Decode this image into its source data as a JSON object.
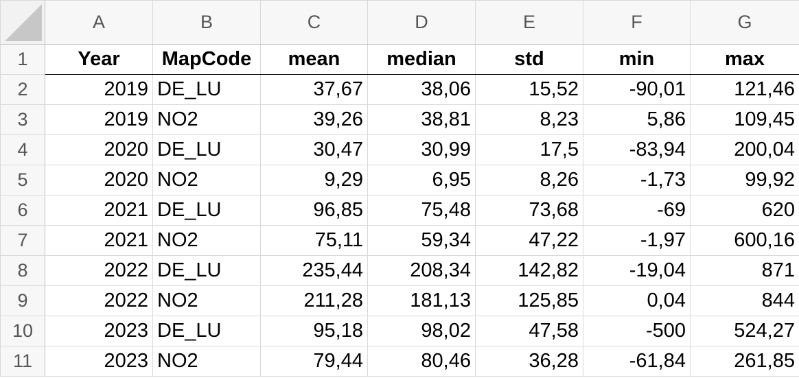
{
  "columns": [
    "A",
    "B",
    "C",
    "D",
    "E",
    "F",
    "G"
  ],
  "header": {
    "row_number": "1",
    "cells": [
      "Year",
      "MapCode",
      "mean",
      "median",
      "std",
      "min",
      "max"
    ]
  },
  "rows": [
    {
      "n": "2",
      "cells": [
        "2019",
        "DE_LU",
        "37,67",
        "38,06",
        "15,52",
        "-90,01",
        "121,46"
      ]
    },
    {
      "n": "3",
      "cells": [
        "2019",
        "NO2",
        "39,26",
        "38,81",
        "8,23",
        "5,86",
        "109,45"
      ]
    },
    {
      "n": "4",
      "cells": [
        "2020",
        "DE_LU",
        "30,47",
        "30,99",
        "17,5",
        "-83,94",
        "200,04"
      ]
    },
    {
      "n": "5",
      "cells": [
        "2020",
        "NO2",
        "9,29",
        "6,95",
        "8,26",
        "-1,73",
        "99,92"
      ]
    },
    {
      "n": "6",
      "cells": [
        "2021",
        "DE_LU",
        "96,85",
        "75,48",
        "73,68",
        "-69",
        "620"
      ]
    },
    {
      "n": "7",
      "cells": [
        "2021",
        "NO2",
        "75,11",
        "59,34",
        "47,22",
        "-1,97",
        "600,16"
      ]
    },
    {
      "n": "8",
      "cells": [
        "2022",
        "DE_LU",
        "235,44",
        "208,34",
        "142,82",
        "-19,04",
        "871"
      ]
    },
    {
      "n": "9",
      "cells": [
        "2022",
        "NO2",
        "211,28",
        "181,13",
        "125,85",
        "0,04",
        "844"
      ]
    },
    {
      "n": "10",
      "cells": [
        "2023",
        "DE_LU",
        "95,18",
        "98,02",
        "47,58",
        "-500",
        "524,27"
      ]
    },
    {
      "n": "11",
      "cells": [
        "2023",
        "NO2",
        "79,44",
        "80,46",
        "36,28",
        "-61,84",
        "261,85"
      ]
    }
  ]
}
